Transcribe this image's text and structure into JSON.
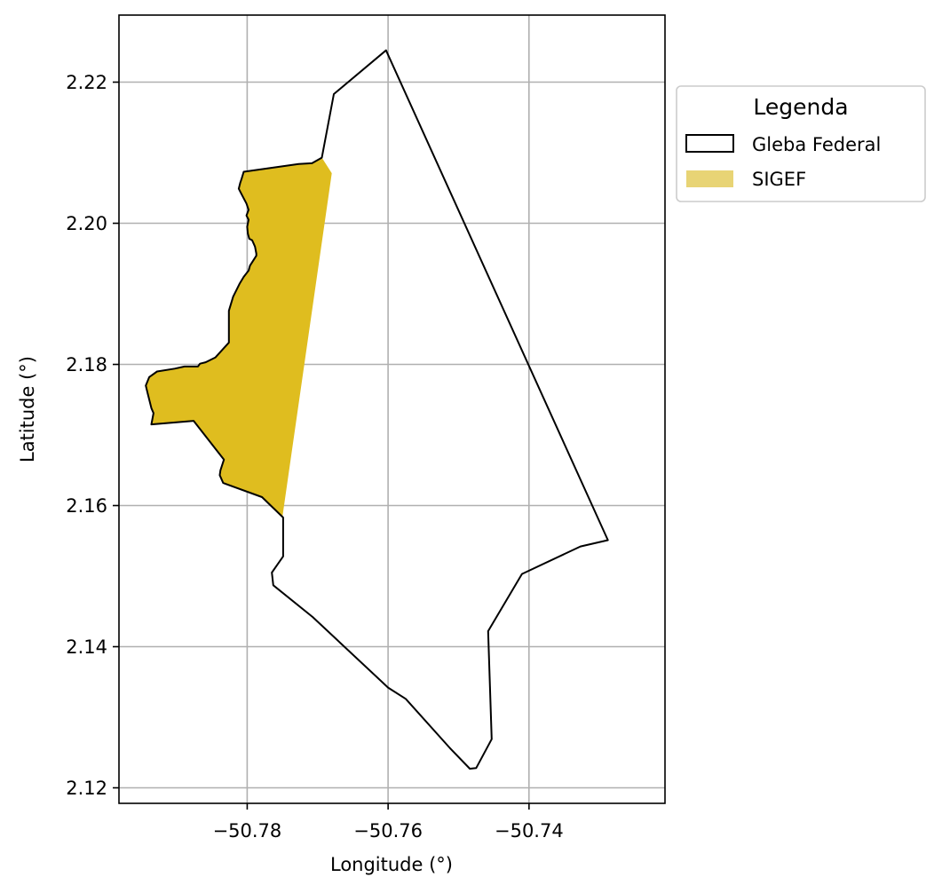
{
  "chart_data": {
    "type": "map",
    "xlabel": "Longitude (°)",
    "ylabel": "Latitude (°)",
    "xlim": [
      -50.7982,
      -50.7207
    ],
    "ylim": [
      2.1178,
      2.2295
    ],
    "x_ticks": [
      -50.78,
      -50.76,
      -50.74
    ],
    "x_tick_labels": [
      "−50.78",
      "−50.76",
      "−50.74"
    ],
    "y_ticks": [
      2.12,
      2.14,
      2.16,
      2.18,
      2.2,
      2.22
    ],
    "y_tick_labels": [
      "2.12",
      "2.14",
      "2.16",
      "2.18",
      "2.20",
      "2.22"
    ],
    "grid": true,
    "legend": {
      "title": "Legenda",
      "placement": "outside-top-right",
      "entries": [
        {
          "label": "Gleba Federal",
          "style": "outline",
          "edge_color": "#000000",
          "fill_color": "none"
        },
        {
          "label": "SIGEF",
          "style": "fill",
          "fill_color": "#e8d475"
        }
      ]
    },
    "layers": [
      {
        "name": "Gleba Federal",
        "edge_color": "#000000",
        "fill_color": "none",
        "polygon": [
          [
            -50.7603,
            2.2245
          ],
          [
            -50.7677,
            2.2183
          ],
          [
            -50.7694,
            2.2093
          ],
          [
            -50.7708,
            2.2085
          ],
          [
            -50.7727,
            2.2084
          ],
          [
            -50.7805,
            2.2073
          ],
          [
            -50.7808,
            2.2063
          ],
          [
            -50.781,
            2.2057
          ],
          [
            -50.7812,
            2.2049
          ],
          [
            -50.7809,
            2.2043
          ],
          [
            -50.7801,
            2.2028
          ],
          [
            -50.7798,
            2.2019
          ],
          [
            -50.7801,
            2.2011
          ],
          [
            -50.7798,
            2.2005
          ],
          [
            -50.78,
            2.1995
          ],
          [
            -50.7799,
            2.1985
          ],
          [
            -50.7797,
            2.1978
          ],
          [
            -50.7793,
            2.1976
          ],
          [
            -50.7789,
            2.1967
          ],
          [
            -50.7787,
            2.1957
          ],
          [
            -50.7787,
            2.1954
          ],
          [
            -50.7791,
            2.1948
          ],
          [
            -50.7796,
            2.194
          ],
          [
            -50.7798,
            2.1933
          ],
          [
            -50.7805,
            2.1924
          ],
          [
            -50.7811,
            2.1914
          ],
          [
            -50.782,
            2.1896
          ],
          [
            -50.7826,
            2.1876
          ],
          [
            -50.7826,
            2.1831
          ],
          [
            -50.7845,
            2.181
          ],
          [
            -50.7859,
            2.1803
          ],
          [
            -50.7867,
            2.1801
          ],
          [
            -50.787,
            2.1797
          ],
          [
            -50.7883,
            2.1797
          ],
          [
            -50.7889,
            2.1797
          ],
          [
            -50.7903,
            2.1794
          ],
          [
            -50.7928,
            2.179
          ],
          [
            -50.7939,
            2.1782
          ],
          [
            -50.7944,
            2.177
          ],
          [
            -50.7941,
            2.1758
          ],
          [
            -50.7936,
            2.1738
          ],
          [
            -50.7933,
            2.1731
          ],
          [
            -50.7936,
            2.1715
          ],
          [
            -50.7876,
            2.172
          ],
          [
            -50.7833,
            2.1665
          ],
          [
            -50.7838,
            2.165
          ],
          [
            -50.7839,
            2.1643
          ],
          [
            -50.7834,
            2.1632
          ],
          [
            -50.7779,
            2.1612
          ],
          [
            -50.7749,
            2.1583
          ],
          [
            -50.7749,
            2.1528
          ],
          [
            -50.7765,
            2.1505
          ],
          [
            -50.7763,
            2.1487
          ],
          [
            -50.7707,
            2.1442
          ],
          [
            -50.76,
            2.1342
          ],
          [
            -50.7575,
            2.1326
          ],
          [
            -50.7512,
            2.1256
          ],
          [
            -50.7484,
            2.1227
          ],
          [
            -50.7475,
            2.1228
          ],
          [
            -50.7453,
            2.1269
          ],
          [
            -50.7458,
            2.1422
          ],
          [
            -50.741,
            2.1503
          ],
          [
            -50.7327,
            2.1542
          ],
          [
            -50.7288,
            2.1551
          ],
          [
            -50.7603,
            2.2245
          ]
        ]
      },
      {
        "name": "SIGEF",
        "fill_color": "#dfbd1f",
        "polygon": [
          [
            -50.7694,
            2.2093
          ],
          [
            -50.7708,
            2.2085
          ],
          [
            -50.7727,
            2.2084
          ],
          [
            -50.7805,
            2.2073
          ],
          [
            -50.7808,
            2.2063
          ],
          [
            -50.781,
            2.2057
          ],
          [
            -50.7812,
            2.2049
          ],
          [
            -50.7809,
            2.2043
          ],
          [
            -50.7801,
            2.2028
          ],
          [
            -50.7798,
            2.2019
          ],
          [
            -50.7801,
            2.2011
          ],
          [
            -50.7798,
            2.2005
          ],
          [
            -50.78,
            2.1995
          ],
          [
            -50.7799,
            2.1985
          ],
          [
            -50.7797,
            2.1978
          ],
          [
            -50.7793,
            2.1976
          ],
          [
            -50.7789,
            2.1967
          ],
          [
            -50.7787,
            2.1957
          ],
          [
            -50.7787,
            2.1954
          ],
          [
            -50.7791,
            2.1948
          ],
          [
            -50.7796,
            2.194
          ],
          [
            -50.7798,
            2.1933
          ],
          [
            -50.7805,
            2.1924
          ],
          [
            -50.7811,
            2.1914
          ],
          [
            -50.782,
            2.1896
          ],
          [
            -50.7826,
            2.1876
          ],
          [
            -50.7826,
            2.1831
          ],
          [
            -50.7845,
            2.181
          ],
          [
            -50.7859,
            2.1803
          ],
          [
            -50.7867,
            2.1801
          ],
          [
            -50.787,
            2.1797
          ],
          [
            -50.7883,
            2.1797
          ],
          [
            -50.7889,
            2.1797
          ],
          [
            -50.7903,
            2.1794
          ],
          [
            -50.7928,
            2.179
          ],
          [
            -50.7939,
            2.1782
          ],
          [
            -50.7944,
            2.177
          ],
          [
            -50.7941,
            2.1758
          ],
          [
            -50.7936,
            2.1738
          ],
          [
            -50.7933,
            2.1731
          ],
          [
            -50.7936,
            2.1715
          ],
          [
            -50.7876,
            2.172
          ],
          [
            -50.7833,
            2.1665
          ],
          [
            -50.7838,
            2.165
          ],
          [
            -50.7839,
            2.1643
          ],
          [
            -50.7834,
            2.1632
          ],
          [
            -50.7779,
            2.1612
          ],
          [
            -50.775,
            2.1584
          ],
          [
            -50.768,
            2.2071
          ]
        ]
      }
    ]
  }
}
